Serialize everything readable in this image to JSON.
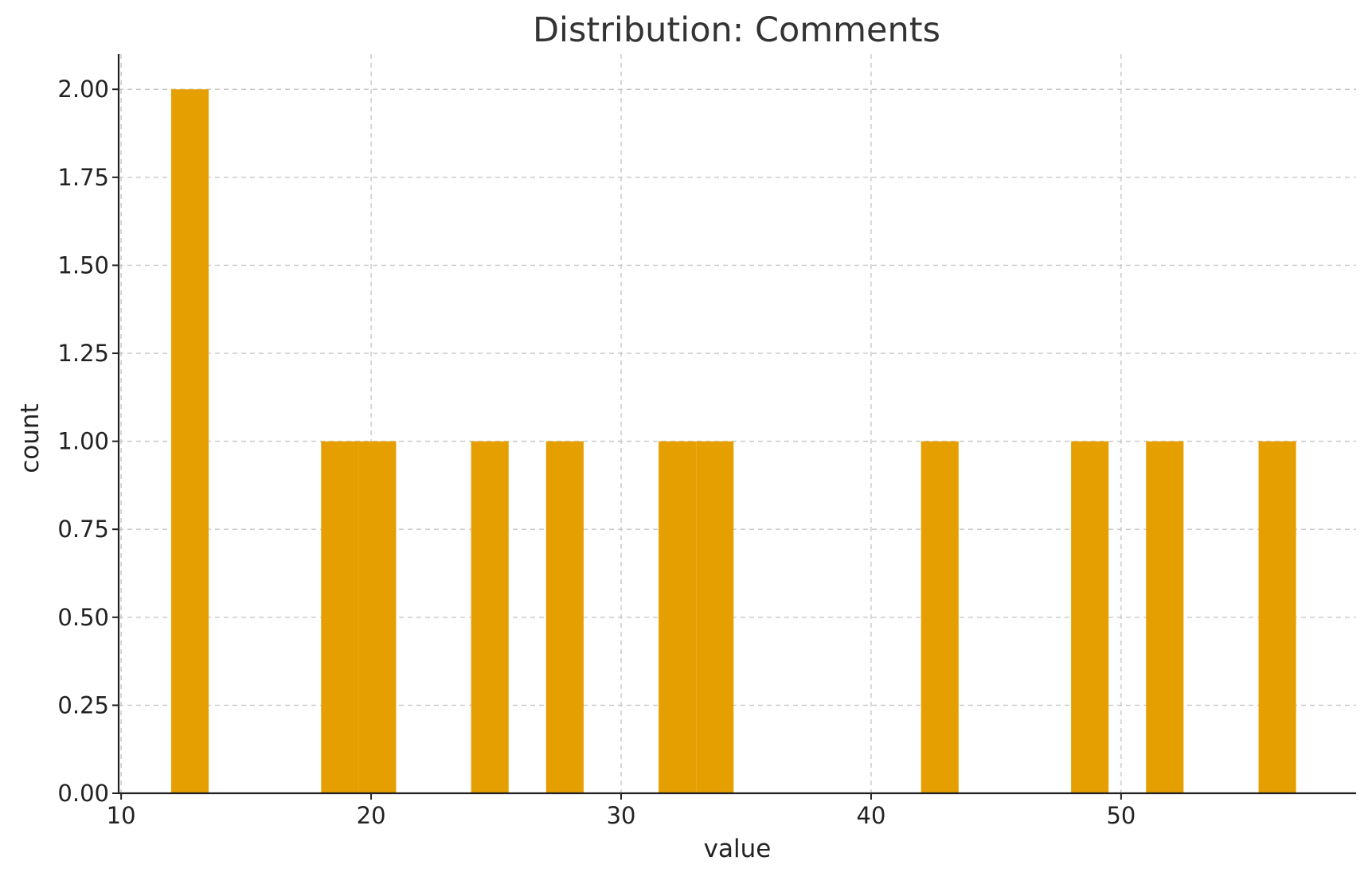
{
  "chart_data": {
    "type": "bar",
    "title": "Distribution: Comments",
    "xlabel": "value",
    "ylabel": "count",
    "xlim": [
      9.9,
      59.4
    ],
    "ylim": [
      0,
      2.1
    ],
    "x_ticks": [
      10,
      20,
      30,
      40,
      50
    ],
    "x_tick_labels": [
      "10",
      "20",
      "30",
      "40",
      "50"
    ],
    "y_ticks": [
      0,
      0.25,
      0.5,
      0.75,
      1.0,
      1.25,
      1.5,
      1.75,
      2.0
    ],
    "y_tick_labels": [
      "0.00",
      "0.25",
      "0.50",
      "0.75",
      "1.00",
      "1.25",
      "1.50",
      "1.75",
      "2.00"
    ],
    "grid": true,
    "bar_color": "#E69F00",
    "bins": [
      {
        "x0": 12.0,
        "x1": 13.5,
        "count": 2
      },
      {
        "x0": 18.0,
        "x1": 19.5,
        "count": 1
      },
      {
        "x0": 19.5,
        "x1": 21.0,
        "count": 1
      },
      {
        "x0": 24.0,
        "x1": 25.5,
        "count": 1
      },
      {
        "x0": 27.0,
        "x1": 28.5,
        "count": 1
      },
      {
        "x0": 31.5,
        "x1": 33.0,
        "count": 1
      },
      {
        "x0": 33.0,
        "x1": 34.5,
        "count": 1
      },
      {
        "x0": 42.0,
        "x1": 43.5,
        "count": 1
      },
      {
        "x0": 48.0,
        "x1": 49.5,
        "count": 1
      },
      {
        "x0": 51.0,
        "x1": 52.5,
        "count": 1
      },
      {
        "x0": 55.5,
        "x1": 57.0,
        "count": 1
      }
    ]
  }
}
